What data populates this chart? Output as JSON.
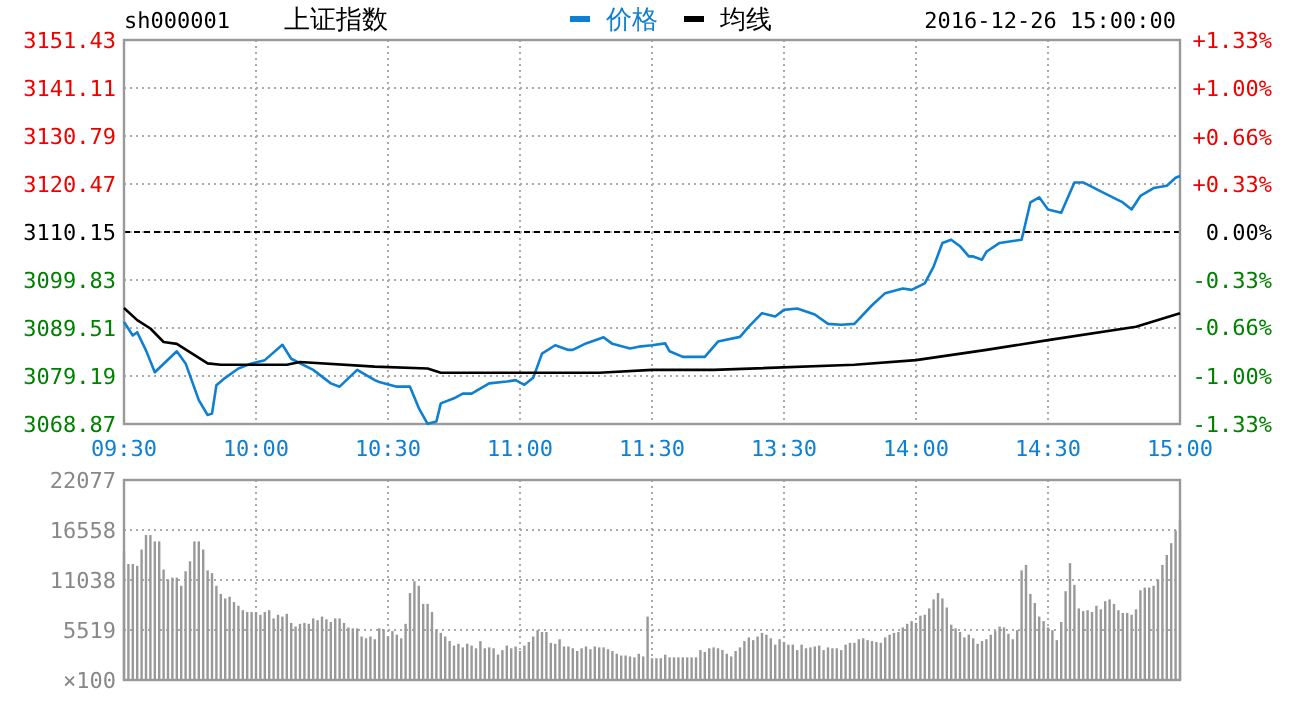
{
  "chart_data": [
    {
      "type": "line",
      "title": "上证指数",
      "subtitle": "sh000001",
      "annotations": [
        "2016-12-26 15:00:00"
      ],
      "legend": "top",
      "grid": true,
      "categories": [
        "09:30",
        null,
        null,
        null,
        null,
        null,
        null,
        null,
        null,
        null,
        null,
        null,
        null,
        null,
        null,
        null,
        null,
        null,
        null,
        null,
        null,
        null,
        null,
        null,
        null,
        null,
        null,
        null,
        null,
        null,
        "10:00",
        null,
        null,
        null,
        null,
        null,
        null,
        null,
        null,
        null,
        null,
        null,
        null,
        null,
        null,
        null,
        null,
        null,
        null,
        null,
        null,
        null,
        null,
        null,
        null,
        null,
        null,
        null,
        null,
        null,
        "10:30",
        null,
        null,
        null,
        null,
        null,
        null,
        null,
        null,
        null,
        null,
        null,
        null,
        null,
        null,
        null,
        null,
        null,
        null,
        null,
        null,
        null,
        null,
        null,
        null,
        null,
        null,
        null,
        null,
        null,
        "11:00",
        null,
        null,
        null,
        null,
        null,
        null,
        null,
        null,
        null,
        null,
        null,
        null,
        null,
        null,
        null,
        null,
        null,
        null,
        null,
        null,
        null,
        null,
        null,
        null,
        null,
        null,
        null,
        null,
        null,
        "11:30",
        null,
        null,
        null,
        null,
        null,
        null,
        null,
        null,
        null,
        null,
        null,
        null,
        null,
        null,
        null,
        null,
        null,
        null,
        null,
        null,
        null,
        null,
        null,
        null,
        null,
        null,
        null,
        null,
        null,
        "13:30",
        null,
        null,
        null,
        null,
        null,
        null,
        null,
        null,
        null,
        null,
        null,
        null,
        null,
        null,
        null,
        null,
        null,
        null,
        null,
        null,
        null,
        null,
        null,
        null,
        null,
        null,
        null,
        null,
        null,
        "14:00",
        null,
        null,
        null,
        null,
        null,
        null,
        null,
        null,
        null,
        null,
        null,
        null,
        null,
        null,
        null,
        null,
        null,
        null,
        null,
        null,
        null,
        null,
        null,
        null,
        null,
        null,
        null,
        null,
        null,
        "14:30",
        null,
        null,
        null,
        null,
        null,
        null,
        null,
        null,
        null,
        null,
        null,
        null,
        null,
        null,
        null,
        null,
        null,
        null,
        null,
        null,
        null,
        null,
        null,
        null,
        null,
        null,
        null,
        null,
        null,
        "15:00"
      ],
      "ylim": [
        3068.87,
        3151.43
      ],
      "yticks": [
        3068.87,
        3079.19,
        3089.51,
        3099.83,
        3110.15,
        3120.47,
        3130.79,
        3141.11,
        3151.43
      ],
      "y2lim": [
        -1.33,
        1.33
      ],
      "y2ticks": [
        {
          "value": -1.33,
          "label": "-1.33%"
        },
        {
          "value": -1,
          "label": "-1.00%"
        },
        {
          "value": -0.66,
          "label": "-0.66%"
        },
        {
          "value": -0.33,
          "label": "-0.33%"
        },
        {
          "value": 0,
          "label": "0.00%"
        },
        {
          "value": 0.33,
          "label": "+0.33%"
        },
        {
          "value": 0.66,
          "label": "+0.66%"
        },
        {
          "value": 1,
          "label": "+1.00%"
        },
        {
          "value": 1.33,
          "label": "+1.33%"
        }
      ],
      "ref_lines": [
        {
          "axis": "y",
          "value": 3110.15,
          "color": "#000000",
          "line_style": "dashed"
        }
      ],
      "series": [
        {
          "name": "价格",
          "color": "#0f7fd2",
          "values": [
            3090.8,
            null,
            3087.9,
            3088.6,
            null,
            3084.7,
            null,
            3080.0,
            null,
            null,
            null,
            null,
            3084.5,
            null,
            3081.9,
            null,
            null,
            3074.0,
            null,
            3070.8,
            3071.1,
            3077.2,
            null,
            3078.8,
            null,
            null,
            3080.8,
            null,
            null,
            3081.9,
            null,
            null,
            3082.6,
            null,
            null,
            null,
            3085.9,
            null,
            3082.9,
            null,
            null,
            null,
            null,
            3080.5,
            null,
            null,
            null,
            3077.6,
            null,
            3076.9,
            null,
            null,
            null,
            3080.5,
            null,
            null,
            null,
            3078.3,
            3077.9,
            null,
            null,
            null,
            3076.9,
            null,
            null,
            3076.9,
            null,
            3072.3,
            null,
            3068.9,
            null,
            3069.4,
            3073.3,
            null,
            null,
            3074.4,
            null,
            3075.4,
            null,
            3075.4,
            null,
            null,
            null,
            3077.6,
            null,
            null,
            null,
            3078.0,
            null,
            3078.3,
            null,
            3077.3,
            null,
            3078.8,
            null,
            3084.0,
            null,
            null,
            3085.8,
            null,
            null,
            3084.8,
            3084.8,
            null,
            null,
            3086.2,
            null,
            null,
            null,
            3087.5,
            null,
            3086.1,
            null,
            null,
            null,
            3085.1,
            null,
            3085.5,
            null,
            null,
            3085.8,
            null,
            null,
            3086.2,
            3084.5,
            null,
            null,
            3083.3,
            null,
            null,
            null,
            null,
            3083.3,
            null,
            null,
            3086.6,
            null,
            null,
            null,
            null,
            3087.6,
            null,
            3089.8,
            null,
            null,
            3092.7,
            null,
            null,
            3092.0,
            null,
            3093.4,
            null,
            null,
            3093.7,
            null,
            null,
            null,
            3092.4,
            null,
            null,
            3090.4,
            null,
            null,
            3090.2,
            null,
            null,
            3090.4,
            null,
            null,
            null,
            3094.4,
            null,
            null,
            3097.0,
            null,
            null,
            null,
            3098.0,
            null,
            3097.7,
            null,
            null,
            3099.1,
            null,
            3102.7,
            null,
            3107.8,
            null,
            3108.5,
            null,
            3107.1,
            null,
            3104.9,
            3104.9,
            null,
            3104.2,
            3105.9,
            null,
            null,
            3107.8,
            null,
            null,
            3108.2,
            null,
            3108.5,
            null,
            3116.5,
            null,
            3117.6,
            null,
            3115.0,
            null,
            null,
            3114.3,
            null,
            null,
            3120.8,
            null,
            3120.8,
            null,
            null,
            null,
            3118.9,
            null,
            null,
            null,
            null,
            3116.5,
            null,
            3115.0,
            null,
            3117.9,
            null,
            null,
            3119.6,
            null,
            null,
            3120.1,
            null,
            3121.8,
            3122.2
          ]
        },
        {
          "name": "均线",
          "color": "#000000",
          "values": [
            3093.8,
            null,
            null,
            3091.2,
            null,
            null,
            3089.4,
            null,
            null,
            3086.5,
            null,
            null,
            3086.1,
            null,
            null,
            null,
            null,
            null,
            null,
            3081.9,
            null,
            null,
            3081.6,
            null,
            null,
            null,
            null,
            null,
            null,
            null,
            null,
            null,
            null,
            null,
            null,
            null,
            null,
            3081.6,
            null,
            null,
            3082.2,
            null,
            null,
            null,
            null,
            null,
            null,
            null,
            null,
            null,
            null,
            null,
            null,
            null,
            null,
            null,
            null,
            3081.2,
            null,
            null,
            null,
            null,
            null,
            null,
            null,
            null,
            null,
            null,
            null,
            3080.8,
            null,
            null,
            3079.9,
            null,
            null,
            null,
            null,
            null,
            null,
            null,
            null,
            null,
            null,
            null,
            null,
            null,
            null,
            null,
            null,
            null,
            null,
            null,
            null,
            null,
            null,
            null,
            null,
            null,
            null,
            null,
            null,
            null,
            null,
            null,
            null,
            null,
            null,
            null,
            3079.9,
            null,
            null,
            null,
            null,
            null,
            null,
            null,
            null,
            null,
            null,
            null,
            3080.5,
            null,
            null,
            null,
            null,
            null,
            null,
            null,
            null,
            null,
            null,
            null,
            null,
            null,
            3080.5,
            null,
            null,
            null,
            null,
            null,
            null,
            null,
            null,
            null,
            null,
            null,
            null,
            null,
            null,
            null,
            null,
            null,
            null,
            null,
            null,
            null,
            null,
            null,
            null,
            null,
            null,
            null,
            null,
            null,
            null,
            null,
            3081.6,
            null,
            null,
            null,
            null,
            null,
            null,
            null,
            null,
            null,
            null,
            null,
            null,
            null,
            3082.6,
            null,
            null,
            null,
            null,
            null,
            null,
            null,
            null,
            null,
            null,
            null,
            null,
            null,
            null,
            null,
            3084.8,
            null,
            null,
            null,
            null,
            null,
            null,
            null,
            null,
            null,
            null,
            null,
            null,
            null,
            3086.9,
            null,
            null,
            null,
            null,
            null,
            null,
            null,
            null,
            null,
            null,
            null,
            null,
            null,
            null,
            null,
            null,
            null,
            null,
            null,
            3089.8,
            null,
            null,
            null,
            null,
            null,
            null,
            null,
            null,
            null,
            3092.7
          ]
        }
      ]
    },
    {
      "type": "bar",
      "color": "#999999",
      "grid": true,
      "tick_labels": "y",
      "ylabel": "×100",
      "categories": [
        null,
        null,
        null,
        null,
        null,
        null,
        null,
        null,
        null,
        null,
        null,
        null,
        null,
        null,
        null,
        null,
        null,
        null,
        null,
        null,
        null,
        null,
        null,
        null,
        null,
        null,
        null,
        null,
        null,
        null,
        null,
        null,
        null,
        null,
        null,
        null,
        null,
        null,
        null,
        null,
        null,
        null,
        null,
        null,
        null,
        null,
        null,
        null,
        null,
        null,
        null,
        null,
        null,
        null,
        null,
        null,
        null,
        null,
        null,
        null,
        null,
        null,
        null,
        null,
        null,
        null,
        null,
        null,
        null,
        null,
        null,
        null,
        null,
        null,
        null,
        null,
        null,
        null,
        null,
        null,
        null,
        null,
        null,
        null,
        null,
        null,
        null,
        null,
        null,
        null,
        null,
        null,
        null,
        null,
        null,
        null,
        null,
        null,
        null,
        null,
        null,
        null,
        null,
        null,
        null,
        null,
        null,
        null,
        null,
        null,
        null,
        null,
        null,
        null,
        null,
        null,
        null,
        null,
        null,
        null,
        null,
        null,
        null,
        null,
        null,
        null,
        null,
        null,
        null,
        null,
        null,
        null,
        null,
        null,
        null,
        null,
        null,
        null,
        null,
        null,
        null,
        null,
        null,
        null,
        null,
        null,
        null,
        null,
        null,
        null,
        null,
        null,
        null,
        null,
        null,
        null,
        null,
        null,
        null,
        null,
        null,
        null,
        null,
        null,
        null,
        null,
        null,
        null,
        null,
        null,
        null,
        null,
        null,
        null,
        null,
        null,
        null,
        null,
        null,
        null,
        null,
        null,
        null,
        null,
        null,
        null,
        null,
        null,
        null,
        null,
        null,
        null,
        null,
        null,
        null,
        null,
        null,
        null,
        null,
        null,
        null,
        null,
        null,
        null,
        null,
        null,
        null,
        null,
        null,
        null,
        null,
        null,
        null,
        null,
        null,
        null,
        null,
        null,
        null,
        null,
        null,
        null,
        null,
        null,
        null,
        null,
        null,
        null,
        null,
        null,
        null,
        null,
        null,
        null,
        null,
        null,
        null,
        null,
        null,
        null,
        null
      ],
      "ylim": [
        0,
        22077
      ],
      "yticks": [
        5519,
        11038,
        16558,
        22077
      ],
      "values": [
        14200,
        12800,
        12800,
        12600,
        14400,
        16000,
        16000,
        15300,
        15300,
        12200,
        11100,
        11300,
        11300,
        10400,
        12000,
        13100,
        15300,
        15300,
        14400,
        12100,
        11800,
        10400,
        9500,
        9000,
        9200,
        8600,
        8200,
        7700,
        7500,
        7500,
        7500,
        7200,
        7500,
        7700,
        6800,
        7200,
        7000,
        7300,
        6300,
        5900,
        6200,
        6300,
        6200,
        6800,
        6600,
        7000,
        6700,
        6400,
        6800,
        6800,
        6300,
        5800,
        5700,
        5700,
        4800,
        4600,
        4800,
        4500,
        5700,
        5600,
        4800,
        5400,
        5000,
        4600,
        6200,
        9600,
        10900,
        10400,
        8400,
        8400,
        7500,
        5600,
        5200,
        4800,
        4300,
        3800,
        4000,
        3600,
        4000,
        3800,
        3500,
        4300,
        3500,
        3600,
        3500,
        2800,
        3300,
        3800,
        3500,
        3700,
        3200,
        3800,
        4200,
        4800,
        5500,
        5300,
        5300,
        4100,
        4000,
        4500,
        3700,
        3700,
        3500,
        3200,
        3500,
        3700,
        3400,
        3700,
        3600,
        3600,
        3400,
        3200,
        2900,
        2700,
        2700,
        2600,
        2500,
        2900,
        2600,
        7000,
        2400,
        2400,
        2400,
        2800,
        2500,
        2500,
        2500,
        2500,
        2500,
        2500,
        2500,
        3300,
        3100,
        3500,
        3600,
        3500,
        3300,
        2900,
        2600,
        3200,
        3600,
        4300,
        4700,
        4400,
        4800,
        5200,
        5000,
        4600,
        3900,
        4500,
        4200,
        3900,
        3900,
        3300,
        3900,
        3500,
        3600,
        3700,
        3800,
        3300,
        3600,
        3500,
        3500,
        3300,
        3900,
        4100,
        4100,
        4500,
        4600,
        4400,
        4300,
        4200,
        4100,
        4700,
        5000,
        5200,
        5300,
        5800,
        6200,
        6500,
        6300,
        7100,
        7200,
        7900,
        8900,
        9600,
        9000,
        8000,
        6100,
        5700,
        5300,
        4700,
        5000,
        4600,
        4000,
        4300,
        4500,
        5000,
        5400,
        5900,
        5800,
        5100,
        4500,
        5500,
        12100,
        12700,
        9500,
        8500,
        7000,
        6500,
        5800,
        5500,
        4400,
        6400,
        9800,
        12900,
        10500,
        7900,
        7600,
        7700,
        7500,
        8200,
        7800,
        8700,
        8900,
        8400,
        7700,
        7400,
        7400,
        7200,
        7800,
        9900,
        10200,
        10200,
        10400,
        11100,
        12700,
        13800,
        15100,
        16500,
        17700
      ]
    }
  ]
}
